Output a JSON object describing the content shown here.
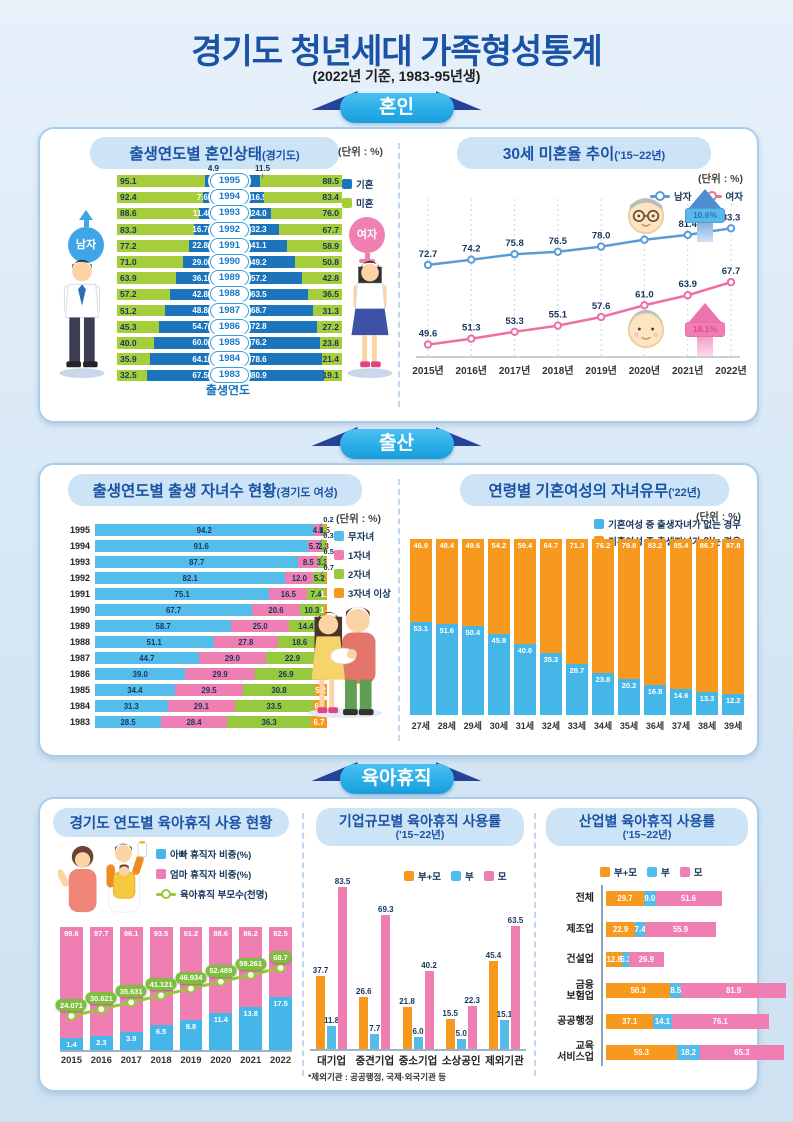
{
  "header": {
    "title": "경기도 청년세대 가족형성통계",
    "subtitle": "(2022년 기준, 1983-95년생)"
  },
  "sections": {
    "marriage": "혼인",
    "birth": "출산",
    "leave": "육아휴직"
  },
  "chart_data": [
    {
      "id": "marital-status-by-birth-year",
      "type": "bar",
      "variant": "diverging-stacked-100",
      "title": "출생연도별 혼인상태",
      "title_suffix": "(경기도)",
      "unit": "(단위 : %)",
      "xlabel": "출생연도",
      "left_group": "남자",
      "right_group": "여자",
      "legend": [
        {
          "label": "기혼",
          "color": "#1c75bc"
        },
        {
          "label": "미혼",
          "color": "#a6ce3a"
        }
      ],
      "rows": [
        {
          "year": 1995,
          "male_unmarried": 95.1,
          "male_married": 4.9,
          "female_married": 11.5,
          "female_unmarried": 88.5
        },
        {
          "year": 1994,
          "male_unmarried": 92.4,
          "male_married": 7.6,
          "female_married": 16.5,
          "female_unmarried": 83.4
        },
        {
          "year": 1993,
          "male_unmarried": 88.6,
          "male_married": 11.4,
          "female_married": 24.0,
          "female_unmarried": 76.0
        },
        {
          "year": 1992,
          "male_unmarried": 83.3,
          "male_married": 16.7,
          "female_married": 32.3,
          "female_unmarried": 67.7
        },
        {
          "year": 1991,
          "male_unmarried": 77.2,
          "male_married": 22.8,
          "female_married": 41.1,
          "female_unmarried": 58.9
        },
        {
          "year": 1990,
          "male_unmarried": 71.0,
          "male_married": 29.0,
          "female_married": 49.2,
          "female_unmarried": 50.8
        },
        {
          "year": 1989,
          "male_unmarried": 63.9,
          "male_married": 36.1,
          "female_married": 57.2,
          "female_unmarried": 42.8
        },
        {
          "year": 1988,
          "male_unmarried": 57.2,
          "male_married": 42.8,
          "female_married": 63.5,
          "female_unmarried": 36.5
        },
        {
          "year": 1987,
          "male_unmarried": 51.2,
          "male_married": 48.8,
          "female_married": 68.7,
          "female_unmarried": 31.3
        },
        {
          "year": 1986,
          "male_unmarried": 45.3,
          "male_married": 54.7,
          "female_married": 72.8,
          "female_unmarried": 27.2
        },
        {
          "year": 1985,
          "male_unmarried": 40.0,
          "male_married": 60.0,
          "female_married": 76.2,
          "female_unmarried": 23.8
        },
        {
          "year": 1984,
          "male_unmarried": 35.9,
          "male_married": 64.1,
          "female_married": 78.6,
          "female_unmarried": 21.4
        },
        {
          "year": 1983,
          "male_unmarried": 32.5,
          "male_married": 67.5,
          "female_married": 80.9,
          "female_unmarried": 19.1
        }
      ]
    },
    {
      "id": "unmarried-rate-age30",
      "type": "line",
      "title": "30세 미혼율 추이",
      "title_suffix": "('15~22년)",
      "unit": "(단위 : %)",
      "x": [
        "2015년",
        "2016년",
        "2017년",
        "2018년",
        "2019년",
        "2020년",
        "2021년",
        "2022년"
      ],
      "ylim": [
        46,
        92
      ],
      "series": [
        {
          "name": "남자",
          "color": "#5b9bd5",
          "values": [
            72.7,
            74.2,
            75.8,
            76.5,
            78.0,
            80.0,
            81.4,
            83.3
          ]
        },
        {
          "name": "여자",
          "color": "#ec6fa6",
          "values": [
            49.6,
            51.3,
            53.3,
            55.1,
            57.6,
            61.0,
            63.9,
            67.7
          ]
        }
      ],
      "annotations": [
        {
          "series": "남자",
          "label": "10.6%"
        },
        {
          "series": "여자",
          "label": "18.1%"
        }
      ]
    },
    {
      "id": "children-count-by-birth-year",
      "type": "bar",
      "variant": "stacked-horizontal-100",
      "title": "출생연도별 출생 자녀수 현황",
      "title_suffix": "(경기도 여성)",
      "unit": "(단위 : %)",
      "legend": [
        {
          "label": "무자녀",
          "color": "#55bdea"
        },
        {
          "label": "1자녀",
          "color": "#ef7fb2"
        },
        {
          "label": "2자녀",
          "color": "#96c93d"
        },
        {
          "label": "3자녀 이상",
          "color": "#f6991e"
        }
      ],
      "categories": [
        1995,
        1994,
        1993,
        1992,
        1991,
        1990,
        1989,
        1988,
        1987,
        1986,
        1985,
        1984,
        1983
      ],
      "series": [
        {
          "name": "무자녀",
          "values": [
            94.2,
            91.6,
            87.7,
            82.1,
            75.1,
            67.7,
            58.7,
            51.1,
            44.7,
            39.0,
            34.4,
            31.3,
            28.5
          ]
        },
        {
          "name": "1자녀",
          "values": [
            4.0,
            5.7,
            8.5,
            12.0,
            16.5,
            20.6,
            25.0,
            27.8,
            29.0,
            29.9,
            29.5,
            29.1,
            28.4
          ]
        },
        {
          "name": "2자녀",
          "values": [
            1.5,
            2.3,
            3.3,
            5.2,
            7.4,
            10.3,
            14.4,
            18.6,
            22.9,
            26.9,
            30.8,
            33.5,
            36.3
          ]
        },
        {
          "name": "3자녀 이상",
          "values": [
            0.2,
            0.3,
            0.5,
            0.7,
            1.0,
            1.4,
            1.9,
            2.6,
            3.4,
            4.3,
            5.2,
            6.1,
            6.7
          ]
        }
      ]
    },
    {
      "id": "married-women-children-by-age",
      "type": "bar",
      "variant": "stacked-vertical-100",
      "title": "연령별 기혼여성의 자녀유무",
      "title_suffix": "('22년)",
      "unit": "(단위 : %)",
      "legend": [
        {
          "label": "기혼여성 중 출생자녀가 없는 경우",
          "color": "#45b6e8"
        },
        {
          "label": "기혼여성 중 출생자녀가 있는 경우",
          "color": "#f6991e"
        }
      ],
      "categories": [
        "27세",
        "28세",
        "29세",
        "30세",
        "31세",
        "32세",
        "33세",
        "34세",
        "35세",
        "36세",
        "37세",
        "38세",
        "39세"
      ],
      "series": [
        {
          "name": "기혼여성 중 출생자녀가 없는 경우",
          "color": "#45b6e8",
          "values": [
            53.1,
            51.6,
            50.4,
            45.8,
            40.6,
            35.3,
            28.7,
            23.8,
            20.2,
            16.8,
            14.6,
            13.3,
            12.2
          ]
        },
        {
          "name": "기혼여성 중 출생자녀가 있는 경우",
          "color": "#f6991e",
          "values": [
            46.9,
            48.4,
            49.6,
            54.2,
            59.4,
            64.7,
            71.3,
            76.2,
            79.8,
            83.2,
            85.4,
            86.7,
            87.8
          ]
        }
      ]
    },
    {
      "id": "leave-usage-by-year",
      "type": "bar",
      "variant": "stacked-100-with-line",
      "title": "경기도 연도별 육아휴직 사용 현황",
      "legend": [
        {
          "label": "아빠 휴직자 비중(%)",
          "color": "#45b6e8",
          "marker": "square"
        },
        {
          "label": "엄마 휴직자 비중(%)",
          "color": "#ef7fb2",
          "marker": "square"
        },
        {
          "label": "육아휴직 부모수(천명)",
          "color": "#9bc63e",
          "marker": "line"
        }
      ],
      "categories": [
        2015,
        2016,
        2017,
        2018,
        2019,
        2020,
        2021,
        2022
      ],
      "series": [
        {
          "name": "아빠 휴직자 비중(%)",
          "values": [
            1.4,
            2.3,
            3.9,
            6.5,
            8.8,
            11.4,
            13.8,
            17.5
          ]
        },
        {
          "name": "엄마 휴직자 비중(%)",
          "values": [
            98.6,
            97.7,
            96.1,
            93.5,
            91.2,
            88.6,
            86.2,
            82.5
          ]
        },
        {
          "name": "육아휴직 부모수(천명)",
          "value_labels": [
            "24.071",
            "30.621",
            "35.631",
            "41.121",
            "46.934",
            "52.489",
            "59.261",
            "68.7"
          ]
        }
      ]
    },
    {
      "id": "leave-rate-by-company-size",
      "type": "bar",
      "variant": "grouped-vertical",
      "title": "기업규모별 육아휴직 사용률",
      "title_suffix": "('15~22년)",
      "legend": [
        {
          "label": "부+모",
          "color": "#f6991e"
        },
        {
          "label": "부",
          "color": "#55bce9"
        },
        {
          "label": "모",
          "color": "#ef7fb2"
        }
      ],
      "categories": [
        "대기업",
        "중견기업",
        "중소기업",
        "소상공인",
        "제외기관"
      ],
      "series": [
        {
          "name": "부+모",
          "values": [
            37.7,
            26.6,
            21.8,
            15.5,
            45.4
          ]
        },
        {
          "name": "부",
          "values": [
            11.8,
            7.7,
            6.0,
            5.0,
            15.1
          ]
        },
        {
          "name": "모",
          "values": [
            83.5,
            69.3,
            40.2,
            22.3,
            63.5
          ]
        }
      ],
      "footnote": "*제외기관 : 공공행정, 국제·외국기관 등"
    },
    {
      "id": "leave-rate-by-industry",
      "type": "bar",
      "variant": "grouped-horizontal",
      "title": "산업별 육아휴직 사용률",
      "title_suffix": "('15~22년)",
      "legend": [
        {
          "label": "부+모",
          "color": "#f6991e"
        },
        {
          "label": "부",
          "color": "#55bce9"
        },
        {
          "label": "모",
          "color": "#ef7fb2"
        }
      ],
      "categories": [
        "전체",
        "제조업",
        "건설업",
        "금융\n보험업",
        "공공행정",
        "교육\n서비스업"
      ],
      "series": [
        {
          "name": "부+모",
          "values": [
            29.7,
            22.9,
            12.8,
            50.3,
            37.1,
            55.3
          ]
        },
        {
          "name": "부",
          "values": [
            9.0,
            7.4,
            5.3,
            8.5,
            14.1,
            18.2
          ]
        },
        {
          "name": "모",
          "values": [
            51.6,
            55.9,
            26.9,
            81.9,
            76.1,
            65.3
          ]
        }
      ]
    }
  ]
}
